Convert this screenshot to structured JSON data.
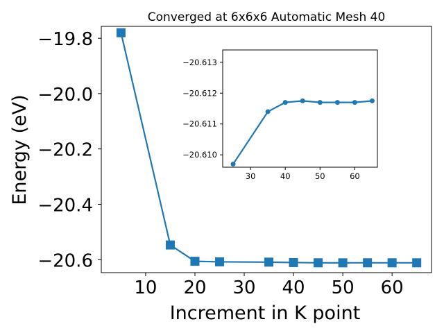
{
  "chart_data": [
    {
      "type": "line",
      "title": "Converged at 6x6x6 Automatic Mesh 40",
      "xlabel": "Increment in K point",
      "ylabel": "Energy (eV)",
      "xlim": [
        1.0,
        68.0
      ],
      "ylim": [
        -20.647,
        -19.757
      ],
      "xticks": [
        10,
        20,
        30,
        40,
        50,
        60
      ],
      "xtick_labels": [
        "10",
        "20",
        "30",
        "40",
        "50",
        "60"
      ],
      "yticks": [
        -19.8,
        -20.0,
        -20.2,
        -20.4,
        -20.6
      ],
      "ytick_labels": [
        "−19.8",
        "−20.0",
        "−20.2",
        "−20.4",
        "−20.6"
      ],
      "marker": "square",
      "color": "#1f77b4",
      "grid": false,
      "series": [
        {
          "x": [
            5,
            15,
            20,
            25,
            35,
            40,
            45,
            50,
            55,
            60,
            65
          ],
          "y": [
            -19.78,
            -20.547,
            -20.606,
            -20.608,
            -20.609,
            -20.6105,
            -20.6114,
            -20.6115,
            -20.6114,
            -20.6114,
            -20.6114
          ]
        }
      ]
    },
    {
      "type": "line",
      "role": "inset",
      "xlim": [
        22.0,
        66.5
      ],
      "ylim": [
        -20.6096,
        -20.6134
      ],
      "xticks": [
        30,
        40,
        50,
        60
      ],
      "xtick_labels": [
        "30",
        "40",
        "50",
        "60"
      ],
      "yticks": [
        -20.613,
        -20.612,
        -20.611,
        -20.61
      ],
      "ytick_labels": [
        "−20.613",
        "−20.612",
        "−20.611",
        "−20.610"
      ],
      "marker": "circle",
      "color": "#1f77b4",
      "grid": false,
      "series": [
        {
          "x": [
            25,
            35,
            40,
            45,
            50,
            55,
            60,
            65
          ],
          "y": [
            -20.6097,
            -20.6114,
            -20.6117,
            -20.61175,
            -20.6117,
            -20.6117,
            -20.6117,
            -20.61175
          ]
        }
      ]
    }
  ]
}
